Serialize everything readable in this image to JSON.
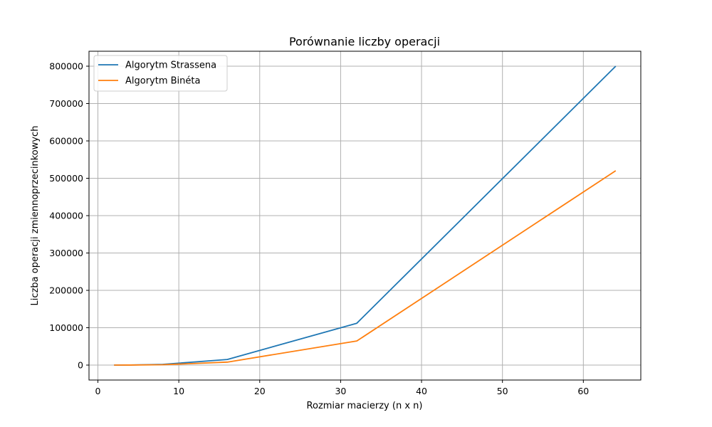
{
  "chart_data": {
    "type": "line",
    "title": "Porównanie liczby operacji",
    "xlabel": "Rozmiar macierzy (n x n)",
    "ylabel": "Liczba operacji zmiennoprzecinkowych",
    "xlim": [
      -1.1,
      67.1
    ],
    "ylim": [
      -40000,
      840000
    ],
    "xticks": [
      0,
      10,
      20,
      30,
      40,
      50,
      60
    ],
    "yticks": [
      0,
      100000,
      200000,
      300000,
      400000,
      500000,
      600000,
      700000,
      800000
    ],
    "grid": true,
    "legend_position": "top-left",
    "series": [
      {
        "name": "Algorytm Strassena",
        "color": "#1f77b4",
        "x": [
          2,
          4,
          8,
          16,
          32,
          64
        ],
        "values": [
          25,
          247,
          1891,
          15000,
          112000,
          800000
        ]
      },
      {
        "name": "Algorytm Binéta",
        "color": "#ff7f0e",
        "x": [
          2,
          4,
          8,
          16,
          32,
          64
        ],
        "values": [
          12,
          112,
          960,
          7936,
          64512,
          520192
        ]
      }
    ]
  }
}
